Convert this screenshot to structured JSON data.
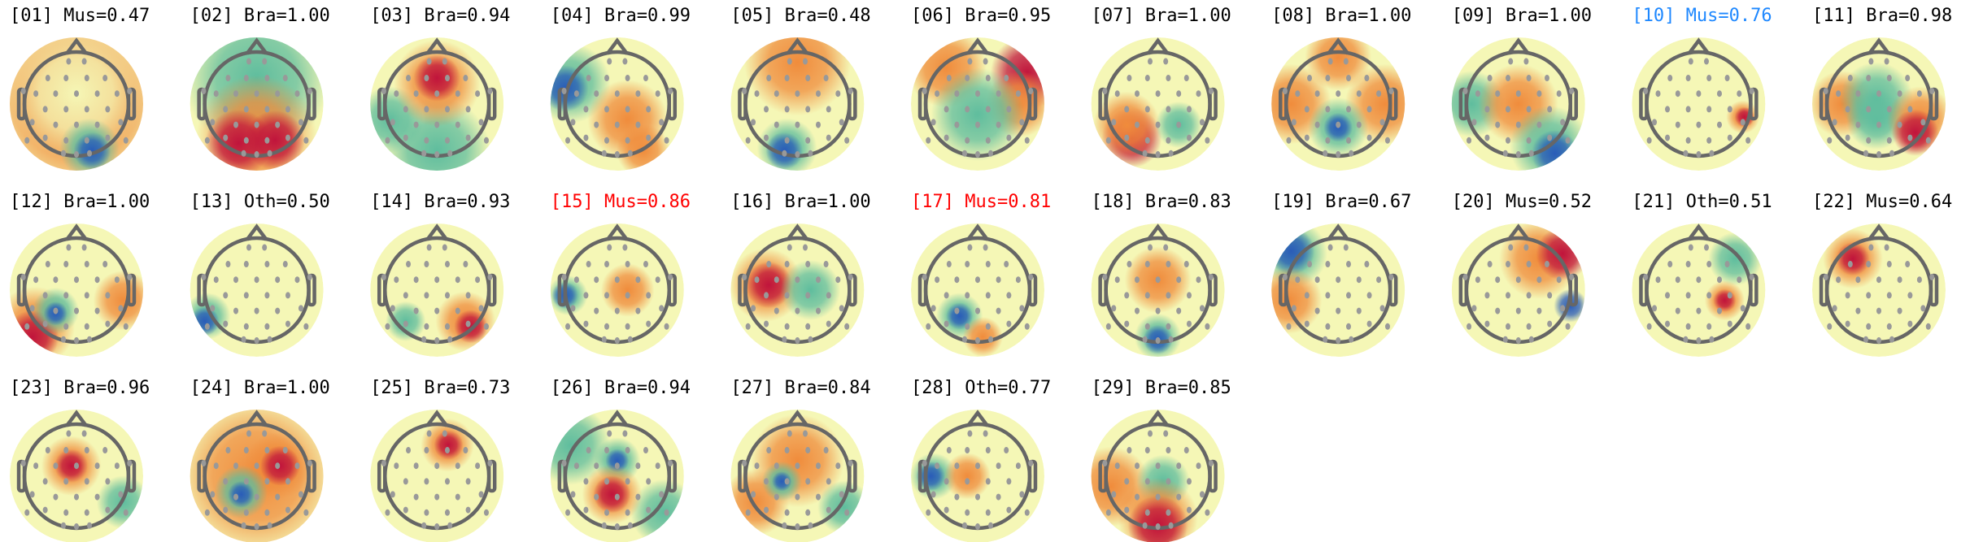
{
  "components": [
    {
      "label": "[01] Mus=0.47",
      "color": "#000000"
    },
    {
      "label": "[02] Bra=1.00",
      "color": "#000000"
    },
    {
      "label": "[03] Bra=0.94",
      "color": "#000000"
    },
    {
      "label": "[04] Bra=0.99",
      "color": "#000000"
    },
    {
      "label": "[05] Bra=0.48",
      "color": "#000000"
    },
    {
      "label": "[06] Bra=0.95",
      "color": "#000000"
    },
    {
      "label": "[07] Bra=1.00",
      "color": "#000000"
    },
    {
      "label": "[08] Bra=1.00",
      "color": "#000000"
    },
    {
      "label": "[09] Bra=1.00",
      "color": "#000000"
    },
    {
      "label": "[10] Mus=0.76",
      "color": "#1e88ff"
    },
    {
      "label": "[11] Bra=0.98",
      "color": "#000000"
    },
    {
      "label": "[12] Bra=1.00",
      "color": "#000000"
    },
    {
      "label": "[13] Oth=0.50",
      "color": "#000000"
    },
    {
      "label": "[14] Bra=0.93",
      "color": "#000000"
    },
    {
      "label": "[15] Mus=0.86",
      "color": "#ff0000"
    },
    {
      "label": "[16] Bra=1.00",
      "color": "#000000"
    },
    {
      "label": "[17] Mus=0.81",
      "color": "#ff0000"
    },
    {
      "label": "[18] Bra=0.83",
      "color": "#000000"
    },
    {
      "label": "[19] Bra=0.67",
      "color": "#000000"
    },
    {
      "label": "[20] Mus=0.52",
      "color": "#000000"
    },
    {
      "label": "[21] Oth=0.51",
      "color": "#000000"
    },
    {
      "label": "[22] Mus=0.64",
      "color": "#000000"
    },
    {
      "label": "[23] Bra=0.96",
      "color": "#000000"
    },
    {
      "label": "[24] Bra=1.00",
      "color": "#000000"
    },
    {
      "label": "[25] Bra=0.73",
      "color": "#000000"
    },
    {
      "label": "[26] Bra=0.94",
      "color": "#000000"
    },
    {
      "label": "[27] Bra=0.84",
      "color": "#000000"
    },
    {
      "label": "[28] Oth=0.77",
      "color": "#000000"
    },
    {
      "label": "[29] Bra=0.85",
      "color": "#000000"
    }
  ],
  "colormap": {
    "negative": "#2a5cb8",
    "low": "#5fbd9e",
    "neutral": "#f5f7b6",
    "high": "#f08c3c",
    "positive": "#c0143c"
  },
  "head_outline_color": "#666666",
  "electrode_color": "#999999"
}
